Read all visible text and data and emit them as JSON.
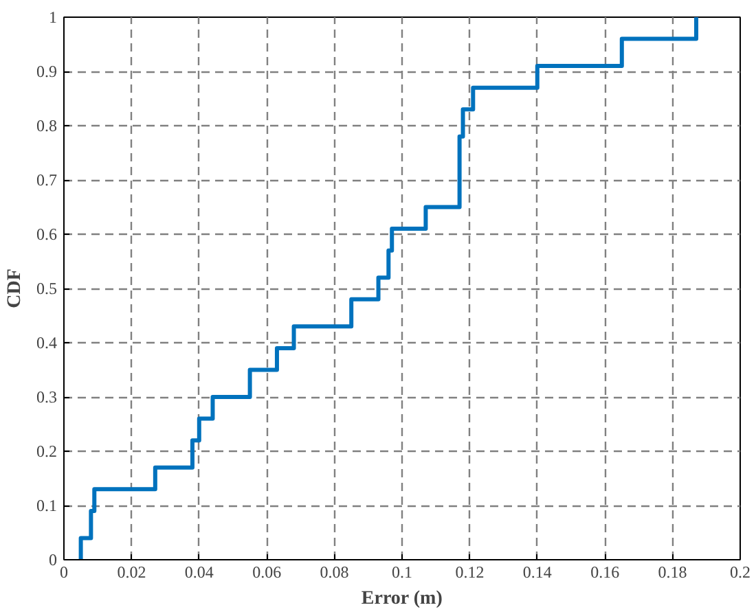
{
  "chart_data": {
    "type": "step",
    "xlabel": "Error (m)",
    "ylabel": "CDF",
    "x": [
      0.005,
      0.005,
      0.008,
      0.009,
      0.027,
      0.038,
      0.04,
      0.044,
      0.055,
      0.063,
      0.068,
      0.085,
      0.093,
      0.096,
      0.097,
      0.107,
      0.117,
      0.118,
      0.121,
      0.14,
      0.165,
      0.187
    ],
    "series": [
      {
        "color": "#0072bd",
        "values": [
          0,
          0.04,
          0.09,
          0.13,
          0.17,
          0.22,
          0.26,
          0.3,
          0.35,
          0.39,
          0.43,
          0.48,
          0.52,
          0.57,
          0.61,
          0.65,
          0.78,
          0.83,
          0.87,
          0.91,
          0.96,
          1
        ]
      }
    ],
    "xlim": [
      0,
      0.2
    ],
    "ylim": [
      0,
      1
    ],
    "xticks": [
      0,
      0.02,
      0.04,
      0.06,
      0.08,
      0.1,
      0.12,
      0.14,
      0.16,
      0.18,
      0.2
    ],
    "yticks": [
      0,
      0.1,
      0.2,
      0.3,
      0.4,
      0.5,
      0.6,
      0.7,
      0.8,
      0.9,
      1
    ],
    "grid": true,
    "line_style": "solid"
  }
}
